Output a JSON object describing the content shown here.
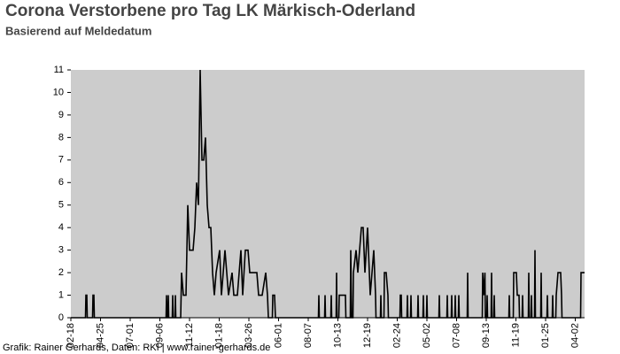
{
  "chart_data": {
    "type": "line",
    "title": "Corona Verstorbene pro Tag LK Märkisch-Oderland",
    "subtitle": "Basierend auf Meldedatum",
    "footer": "Grafik: Rainer Gerhards, Daten: RKI | www.rainer-gerhards.de",
    "color": "#000000",
    "background": "#cccccc",
    "grid": false,
    "xlim": [
      0,
      1160
    ],
    "xticks": [
      {
        "value": 0,
        "label": "02-18"
      },
      {
        "value": 67,
        "label": "04-25"
      },
      {
        "value": 134,
        "label": "07-01"
      },
      {
        "value": 201,
        "label": "09-06"
      },
      {
        "value": 268,
        "label": "11-12"
      },
      {
        "value": 335,
        "label": "01-18"
      },
      {
        "value": 402,
        "label": "03-26"
      },
      {
        "value": 469,
        "label": "06-01"
      },
      {
        "value": 536,
        "label": "08-07"
      },
      {
        "value": 603,
        "label": "10-13"
      },
      {
        "value": 670,
        "label": "12-19"
      },
      {
        "value": 737,
        "label": "02-24"
      },
      {
        "value": 804,
        "label": "05-02"
      },
      {
        "value": 871,
        "label": "07-08"
      },
      {
        "value": 938,
        "label": "09-13"
      },
      {
        "value": 1005,
        "label": "11-19"
      },
      {
        "value": 1072,
        "label": "01-25"
      },
      {
        "value": 1139,
        "label": "04-02"
      }
    ],
    "ylim": [
      0,
      11
    ],
    "yticks": [
      0,
      1,
      2,
      3,
      4,
      5,
      6,
      7,
      8,
      9,
      10,
      11
    ],
    "x": [
      0,
      33,
      34,
      36,
      37,
      49,
      50,
      52,
      53,
      215,
      216,
      217,
      219,
      220,
      221,
      229,
      230,
      231,
      235,
      236,
      237,
      248,
      250,
      254,
      260,
      264,
      268,
      272,
      276,
      280,
      284,
      288,
      292,
      296,
      300,
      304,
      308,
      312,
      316,
      320,
      324,
      328,
      336,
      340,
      348,
      352,
      356,
      364,
      368,
      376,
      384,
      388,
      394,
      400,
      404,
      410,
      416,
      420,
      424,
      432,
      440,
      444,
      446,
      455,
      456,
      460,
      462,
      559,
      560,
      561,
      573,
      574,
      575,
      587,
      588,
      589,
      599,
      600,
      601,
      605,
      606,
      612,
      620,
      621,
      631,
      632,
      634,
      637,
      638,
      644,
      648,
      656,
      660,
      664,
      670,
      676,
      684,
      688,
      689,
      699,
      700,
      701,
      707,
      708,
      712,
      716,
      717,
      743,
      744,
      746,
      747,
      759,
      760,
      761,
      767,
      768,
      769,
      783,
      784,
      785,
      795,
      796,
      797,
      803,
      804,
      805,
      831,
      832,
      833,
      849,
      850,
      851,
      859,
      860,
      861,
      867,
      868,
      869,
      875,
      876,
      877,
      895,
      896,
      897,
      929,
      930,
      932,
      935,
      936,
      939,
      940,
      941,
      949,
      950,
      951,
      955,
      956,
      957,
      989,
      990,
      991,
      999,
      1000,
      1006,
      1008,
      1012,
      1013,
      1019,
      1020,
      1021,
      1033,
      1034,
      1035,
      1039,
      1040,
      1041,
      1047,
      1048,
      1049,
      1061,
      1062,
      1063,
      1075,
      1076,
      1077,
      1087,
      1088,
      1089,
      1095,
      1096,
      1100,
      1106,
      1108,
      1109,
      1151,
      1152,
      1160
    ],
    "values": [
      0,
      0,
      1,
      1,
      0,
      0,
      1,
      1,
      0,
      0,
      1,
      0,
      0,
      1,
      0,
      0,
      1,
      0,
      0,
      1,
      0,
      0,
      2,
      1,
      1,
      5,
      3,
      3,
      3,
      4,
      6,
      5,
      11,
      7,
      7,
      8,
      5,
      4,
      4,
      2,
      1,
      2,
      3,
      1,
      3,
      2,
      1,
      2,
      1,
      1,
      3,
      1,
      3,
      3,
      2,
      2,
      2,
      2,
      1,
      1,
      2,
      1,
      0,
      0,
      1,
      1,
      0,
      0,
      1,
      0,
      0,
      1,
      0,
      0,
      1,
      0,
      0,
      2,
      0,
      0,
      1,
      1,
      1,
      0,
      0,
      3,
      0,
      0,
      2,
      3,
      2,
      4,
      4,
      2,
      4,
      1,
      3,
      1,
      0,
      0,
      1,
      0,
      0,
      2,
      2,
      1,
      0,
      0,
      1,
      1,
      0,
      0,
      1,
      0,
      0,
      1,
      0,
      0,
      1,
      0,
      0,
      1,
      0,
      0,
      1,
      0,
      0,
      1,
      0,
      0,
      1,
      0,
      0,
      1,
      0,
      0,
      1,
      0,
      0,
      1,
      0,
      0,
      2,
      0,
      0,
      2,
      1,
      2,
      0,
      0,
      1,
      0,
      0,
      2,
      0,
      0,
      1,
      0,
      0,
      1,
      0,
      0,
      2,
      2,
      1,
      1,
      0,
      0,
      1,
      0,
      0,
      2,
      0,
      0,
      1,
      0,
      0,
      3,
      0,
      0,
      2,
      0,
      0,
      1,
      0,
      0,
      1,
      0,
      0,
      1,
      2,
      2,
      1,
      0,
      0,
      2,
      2
    ]
  }
}
